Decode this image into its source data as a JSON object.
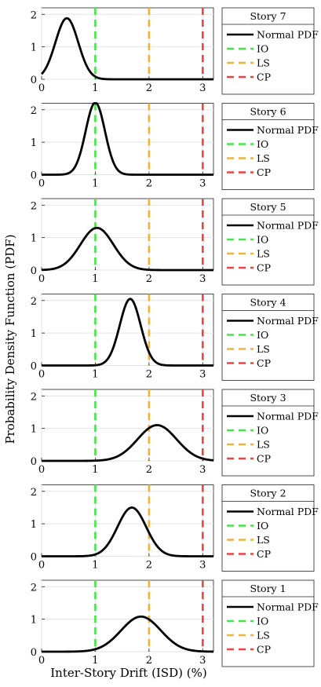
{
  "figure": {
    "ylabel": "Probability Density Function (PDF)",
    "xlabel": "Inter-Story Drift (ISD) (%)"
  },
  "colors": {
    "pdf": "#000000",
    "IO": "#44e844",
    "LS": "#f0b43c",
    "CP": "#ee4444",
    "grid": "#e3e3e3"
  },
  "legend_labels": [
    "Normal PDF",
    "IO",
    "LS",
    "CP"
  ],
  "chart_data": [
    {
      "type": "line",
      "title": "Story 7",
      "mean": 0.47,
      "std": 0.2122,
      "peak": 1.88,
      "xlim": [
        0,
        3.2
      ],
      "ylim": [
        0,
        2.2
      ],
      "xticks": [
        0,
        1,
        2,
        3
      ],
      "yticks": [
        0,
        1,
        2
      ],
      "grid": true,
      "legend_position": "right",
      "series": [
        {
          "name": "Normal PDF",
          "kind": "normal-pdf"
        },
        {
          "name": "IO",
          "x": 1
        },
        {
          "name": "LS",
          "x": 2
        },
        {
          "name": "CP",
          "x": 3
        }
      ]
    },
    {
      "type": "line",
      "title": "Story 6",
      "mean": 1.0,
      "std": 0.1796,
      "peak": 2.22,
      "xlim": [
        0,
        3.2
      ],
      "ylim": [
        0,
        2.2
      ],
      "xticks": [
        0,
        1,
        2,
        3
      ],
      "yticks": [
        0,
        1,
        2
      ],
      "grid": true,
      "legend_position": "right",
      "series": [
        {
          "name": "Normal PDF",
          "kind": "normal-pdf"
        },
        {
          "name": "IO",
          "x": 1
        },
        {
          "name": "LS",
          "x": 2
        },
        {
          "name": "CP",
          "x": 3
        }
      ]
    },
    {
      "type": "line",
      "title": "Story 5",
      "mean": 1.03,
      "std": 0.3069,
      "peak": 1.3,
      "xlim": [
        0,
        3.2
      ],
      "ylim": [
        0,
        2.2
      ],
      "xticks": [
        0,
        1,
        2,
        3
      ],
      "yticks": [
        0,
        1,
        2
      ],
      "grid": true,
      "legend_position": "right",
      "series": [
        {
          "name": "Normal PDF",
          "kind": "normal-pdf"
        },
        {
          "name": "IO",
          "x": 1
        },
        {
          "name": "LS",
          "x": 2
        },
        {
          "name": "CP",
          "x": 3
        }
      ]
    },
    {
      "type": "line",
      "title": "Story 4",
      "mean": 1.65,
      "std": 0.1946,
      "peak": 2.05,
      "xlim": [
        0,
        3.2
      ],
      "ylim": [
        0,
        2.2
      ],
      "xticks": [
        0,
        1,
        2,
        3
      ],
      "yticks": [
        0,
        1,
        2
      ],
      "grid": true,
      "legend_position": "right",
      "series": [
        {
          "name": "Normal PDF",
          "kind": "normal-pdf"
        },
        {
          "name": "IO",
          "x": 1
        },
        {
          "name": "LS",
          "x": 2
        },
        {
          "name": "CP",
          "x": 3
        }
      ]
    },
    {
      "type": "line",
      "title": "Story 3",
      "mean": 2.15,
      "std": 0.3627,
      "peak": 1.1,
      "xlim": [
        0,
        3.2
      ],
      "ylim": [
        0,
        2.2
      ],
      "xticks": [
        0,
        1,
        2,
        3
      ],
      "yticks": [
        0,
        1,
        2
      ],
      "grid": true,
      "legend_position": "right",
      "series": [
        {
          "name": "Normal PDF",
          "kind": "normal-pdf"
        },
        {
          "name": "IO",
          "x": 1
        },
        {
          "name": "LS",
          "x": 2
        },
        {
          "name": "CP",
          "x": 3
        }
      ]
    },
    {
      "type": "line",
      "title": "Story 2",
      "mean": 1.68,
      "std": 0.266,
      "peak": 1.5,
      "xlim": [
        0,
        3.2
      ],
      "ylim": [
        0,
        2.2
      ],
      "xticks": [
        0,
        1,
        2,
        3
      ],
      "yticks": [
        0,
        1,
        2
      ],
      "grid": true,
      "legend_position": "right",
      "series": [
        {
          "name": "Normal PDF",
          "kind": "normal-pdf"
        },
        {
          "name": "IO",
          "x": 1
        },
        {
          "name": "LS",
          "x": 2
        },
        {
          "name": "CP",
          "x": 3
        }
      ]
    },
    {
      "type": "line",
      "title": "Story 1",
      "mean": 1.85,
      "std": 0.3693,
      "peak": 1.08,
      "xlim": [
        0,
        3.2
      ],
      "ylim": [
        0,
        2.2
      ],
      "xticks": [
        0,
        1,
        2,
        3
      ],
      "yticks": [
        0,
        1,
        2
      ],
      "grid": true,
      "legend_position": "right",
      "series": [
        {
          "name": "Normal PDF",
          "kind": "normal-pdf"
        },
        {
          "name": "IO",
          "x": 1
        },
        {
          "name": "LS",
          "x": 2
        },
        {
          "name": "CP",
          "x": 3
        }
      ]
    }
  ]
}
